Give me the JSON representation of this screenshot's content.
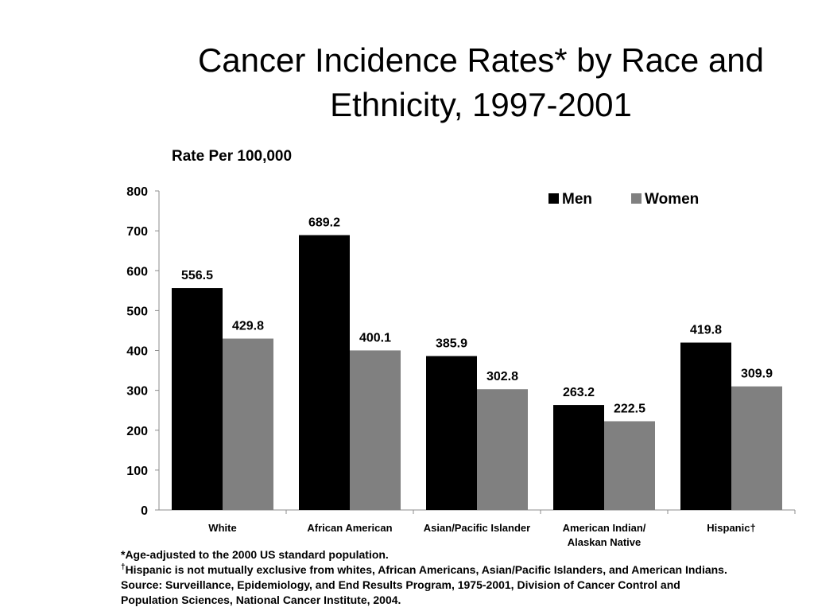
{
  "slide": {
    "title_line1": "Cancer Incidence Rates* by Race and",
    "title_line2": "Ethnicity, 1997-2001"
  },
  "chart_data": {
    "type": "bar",
    "title": "Cancer Incidence Rates* by Race and Ethnicity, 1997-2001",
    "ylabel": "Rate Per 100,000",
    "xlabel": "",
    "ylim": [
      0,
      800
    ],
    "yticks": [
      0,
      100,
      200,
      300,
      400,
      500,
      600,
      700,
      800
    ],
    "grid": false,
    "legend_position": "top-right",
    "categories": [
      [
        "White"
      ],
      [
        "African American"
      ],
      [
        "Asian/Pacific Islander"
      ],
      [
        "American Indian/",
        "Alaskan Native"
      ],
      [
        "Hispanic†"
      ]
    ],
    "series": [
      {
        "name": "Men",
        "color": "#000000",
        "values": [
          556.5,
          689.2,
          385.9,
          263.2,
          419.8
        ]
      },
      {
        "name": "Women",
        "color": "#808080",
        "values": [
          429.8,
          400.1,
          302.8,
          222.5,
          309.9
        ]
      }
    ]
  },
  "footnotes": {
    "line1": "*Age-adjusted to the 2000 US standard population.",
    "line2_mark": "†",
    "line2": "Hispanic is not mutually exclusive from whites, African Americans, Asian/Pacific Islanders, and American Indians.",
    "line3": "Source: Surveillance, Epidemiology, and End Results Program, 1975-2001, Division of Cancer Control and",
    "line4": "Population Sciences, National Cancer Institute, 2004."
  }
}
